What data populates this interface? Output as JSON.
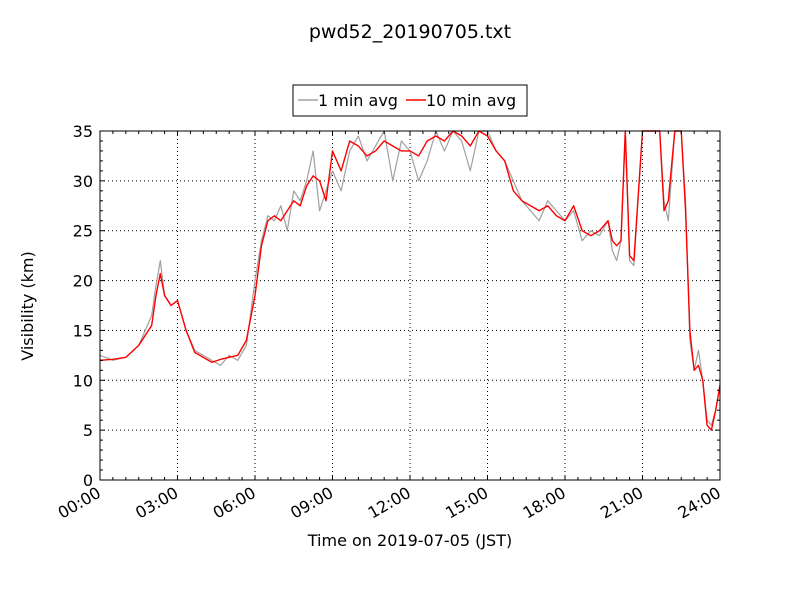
{
  "chart_data": {
    "type": "line",
    "title": "pwd52_20190705.txt",
    "xlabel": "Time on 2019-07-05 (JST)",
    "ylabel": "Visibility (km)",
    "xlim": [
      "00:00",
      "24:00"
    ],
    "ylim": [
      0,
      35
    ],
    "x_tick_labels": [
      "00:00",
      "03:00",
      "06:00",
      "09:00",
      "12:00",
      "15:00",
      "18:00",
      "21:00",
      "24:00"
    ],
    "y_tick_labels": [
      "0",
      "5",
      "10",
      "15",
      "20",
      "25",
      "30",
      "35"
    ],
    "grid": "dotted",
    "legend_position": "top-center, above plot",
    "series": [
      {
        "name": "1 min avg",
        "color": "#a0a0a0",
        "x": [
          "00:00",
          "00:30",
          "01:00",
          "01:30",
          "02:00",
          "02:10",
          "02:20",
          "02:30",
          "02:45",
          "03:00",
          "03:20",
          "03:40",
          "04:00",
          "04:20",
          "04:40",
          "05:00",
          "05:20",
          "05:40",
          "06:00",
          "06:15",
          "06:30",
          "06:45",
          "07:00",
          "07:15",
          "07:30",
          "07:45",
          "08:00",
          "08:15",
          "08:30",
          "08:45",
          "09:00",
          "09:20",
          "09:40",
          "10:00",
          "10:20",
          "10:40",
          "11:00",
          "11:20",
          "11:40",
          "12:00",
          "12:20",
          "12:40",
          "13:00",
          "13:20",
          "13:40",
          "14:00",
          "14:20",
          "14:40",
          "15:00",
          "15:20",
          "15:40",
          "16:00",
          "16:20",
          "16:40",
          "17:00",
          "17:20",
          "17:40",
          "18:00",
          "18:20",
          "18:40",
          "19:00",
          "19:20",
          "19:40",
          "19:50",
          "20:00",
          "20:10",
          "20:20",
          "20:30",
          "20:40",
          "21:00",
          "21:30",
          "21:40",
          "21:50",
          "22:00",
          "22:15",
          "22:30",
          "22:40",
          "22:50",
          "23:00",
          "23:10",
          "23:20",
          "23:30",
          "23:40",
          "23:50",
          "24:00"
        ],
        "values": [
          12.5,
          12.0,
          12.3,
          13.5,
          16.5,
          19.5,
          22.0,
          18.5,
          17.5,
          18.0,
          15.0,
          13.0,
          12.5,
          12.0,
          11.5,
          12.5,
          12.0,
          13.5,
          20.0,
          24.0,
          26.5,
          26.0,
          27.5,
          25.0,
          29.0,
          28.0,
          30.0,
          33.0,
          27.0,
          29.0,
          31.0,
          29.0,
          33.0,
          34.5,
          32.0,
          33.5,
          35.0,
          30.0,
          34.0,
          33.0,
          30.0,
          32.0,
          35.0,
          33.0,
          35.0,
          34.0,
          31.0,
          35.0,
          35.0,
          33.0,
          32.0,
          30.0,
          28.0,
          27.0,
          26.0,
          28.0,
          27.0,
          26.0,
          27.0,
          24.0,
          25.0,
          24.5,
          26.0,
          23.0,
          22.0,
          24.0,
          35.0,
          22.0,
          21.5,
          35.0,
          35.0,
          35.0,
          28.0,
          26.0,
          35.0,
          35.0,
          28.0,
          14.0,
          11.0,
          13.0,
          10.0,
          6.0,
          5.5,
          7.0,
          9.5
        ]
      },
      {
        "name": "10 min avg",
        "color": "#ff0000",
        "x": [
          "00:00",
          "00:30",
          "01:00",
          "01:30",
          "02:00",
          "02:10",
          "02:20",
          "02:30",
          "02:45",
          "03:00",
          "03:20",
          "03:40",
          "04:00",
          "04:20",
          "04:40",
          "05:00",
          "05:20",
          "05:40",
          "06:00",
          "06:15",
          "06:30",
          "06:45",
          "07:00",
          "07:15",
          "07:30",
          "07:45",
          "08:00",
          "08:15",
          "08:30",
          "08:45",
          "09:00",
          "09:20",
          "09:40",
          "10:00",
          "10:20",
          "10:40",
          "11:00",
          "11:20",
          "11:40",
          "12:00",
          "12:20",
          "12:40",
          "13:00",
          "13:20",
          "13:40",
          "14:00",
          "14:20",
          "14:40",
          "15:00",
          "15:20",
          "15:40",
          "16:00",
          "16:20",
          "16:40",
          "17:00",
          "17:20",
          "17:40",
          "18:00",
          "18:20",
          "18:40",
          "19:00",
          "19:20",
          "19:40",
          "19:50",
          "20:00",
          "20:10",
          "20:20",
          "20:30",
          "20:40",
          "21:00",
          "21:30",
          "21:40",
          "21:50",
          "22:00",
          "22:15",
          "22:30",
          "22:40",
          "22:50",
          "23:00",
          "23:10",
          "23:20",
          "23:30",
          "23:40",
          "23:50",
          "24:00"
        ],
        "values": [
          12.0,
          12.1,
          12.3,
          13.5,
          15.5,
          18.5,
          20.7,
          18.5,
          17.5,
          18.0,
          15.0,
          12.8,
          12.3,
          11.8,
          12.1,
          12.3,
          12.5,
          14.0,
          18.5,
          23.5,
          26.0,
          26.5,
          26.0,
          27.0,
          28.0,
          27.5,
          29.5,
          30.5,
          30.0,
          28.0,
          33.0,
          31.0,
          34.0,
          33.5,
          32.5,
          33.0,
          34.0,
          33.5,
          33.0,
          33.0,
          32.5,
          34.0,
          34.5,
          34.0,
          35.0,
          34.5,
          33.5,
          35.0,
          34.5,
          33.0,
          32.0,
          29.0,
          28.0,
          27.5,
          27.0,
          27.5,
          26.5,
          26.0,
          27.5,
          25.0,
          24.5,
          25.0,
          26.0,
          24.0,
          23.5,
          24.0,
          35.0,
          22.5,
          22.0,
          35.0,
          35.0,
          35.0,
          27.0,
          28.0,
          35.0,
          35.0,
          27.0,
          15.0,
          11.0,
          11.5,
          10.0,
          5.5,
          5.0,
          7.0,
          9.5
        ]
      }
    ]
  }
}
